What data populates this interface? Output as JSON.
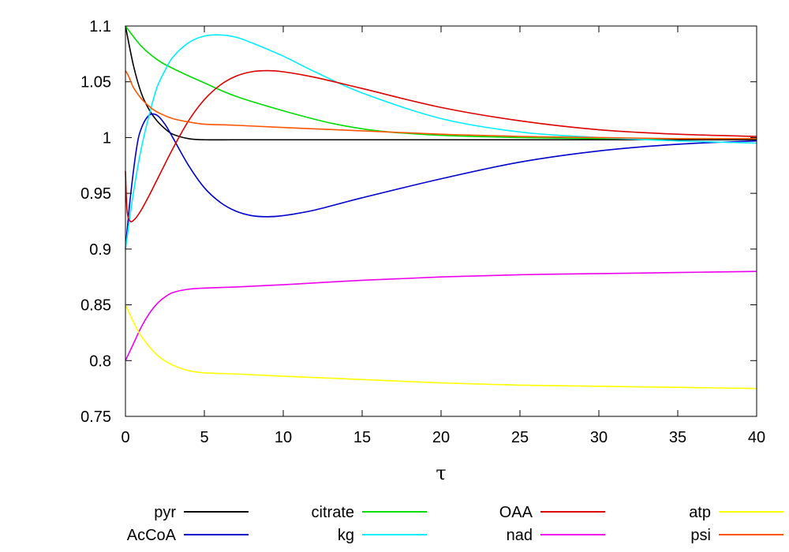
{
  "chart_data": {
    "type": "line",
    "title": "",
    "xlabel": "τ",
    "ylabel": "",
    "xlim": [
      0,
      40
    ],
    "ylim": [
      0.75,
      1.1
    ],
    "x_ticks": [
      0,
      5,
      10,
      15,
      20,
      25,
      30,
      35,
      40
    ],
    "x_tick_labels": [
      "0",
      "5",
      "10",
      "15",
      "20",
      "25",
      "30",
      "35",
      "40"
    ],
    "y_ticks": [
      0.75,
      0.8,
      0.85,
      0.9,
      0.95,
      1.0,
      1.05,
      1.1
    ],
    "y_tick_labels": [
      "0.75",
      "0.8",
      "0.85",
      "0.9",
      "0.95",
      "1",
      "1.05",
      "1.1"
    ],
    "grid": false,
    "legend_position": "bottom",
    "series": [
      {
        "name": "pyr",
        "color": "#000000",
        "x": [
          0,
          0.5,
          1,
          1.5,
          2,
          2.5,
          3,
          4,
          5,
          7,
          10,
          15,
          20,
          30,
          40
        ],
        "y": [
          1.1,
          1.065,
          1.04,
          1.025,
          1.015,
          1.008,
          1.003,
          0.999,
          0.998,
          0.998,
          0.998,
          0.998,
          0.998,
          0.998,
          0.998
        ]
      },
      {
        "name": "AcCoA",
        "color": "#0000cc",
        "x": [
          0,
          0.3,
          0.7,
          1,
          1.5,
          2,
          2.5,
          3,
          4,
          5,
          6,
          7,
          8,
          9,
          10,
          12,
          15,
          20,
          25,
          30,
          35,
          40
        ],
        "y": [
          0.9,
          0.945,
          0.99,
          1.008,
          1.02,
          1.02,
          1.012,
          1.0,
          0.975,
          0.955,
          0.942,
          0.934,
          0.93,
          0.929,
          0.93,
          0.935,
          0.946,
          0.963,
          0.978,
          0.988,
          0.994,
          0.997
        ]
      },
      {
        "name": "citrate",
        "color": "#00dd00",
        "x": [
          0,
          1,
          2,
          3,
          5,
          7,
          10,
          13,
          16,
          20,
          25,
          30,
          35,
          40
        ],
        "y": [
          1.1,
          1.082,
          1.07,
          1.062,
          1.049,
          1.037,
          1.024,
          1.013,
          1.006,
          1.002,
          1.0,
          0.999,
          0.999,
          0.999
        ]
      },
      {
        "name": "kg",
        "color": "#00eeff",
        "x": [
          0,
          0.5,
          1,
          1.5,
          2,
          2.5,
          3,
          4,
          5,
          6,
          7,
          8,
          10,
          12,
          15,
          20,
          25,
          30,
          35,
          40
        ],
        "y": [
          0.9,
          0.95,
          0.99,
          1.02,
          1.045,
          1.06,
          1.072,
          1.085,
          1.091,
          1.092,
          1.09,
          1.085,
          1.073,
          1.059,
          1.04,
          1.017,
          1.005,
          1.0,
          0.997,
          0.995
        ]
      },
      {
        "name": "OAA",
        "color": "#dd0000",
        "x": [
          0,
          0.1,
          0.3,
          0.6,
          1,
          1.5,
          2,
          3,
          4,
          5,
          6,
          7,
          8,
          9,
          10,
          12,
          15,
          20,
          25,
          30,
          35,
          40
        ],
        "y": [
          0.97,
          0.935,
          0.925,
          0.927,
          0.935,
          0.948,
          0.962,
          0.99,
          1.015,
          1.034,
          1.047,
          1.055,
          1.059,
          1.06,
          1.059,
          1.054,
          1.044,
          1.027,
          1.015,
          1.007,
          1.003,
          1.001
        ]
      },
      {
        "name": "nad",
        "color": "#ee00ee",
        "x": [
          0,
          0.5,
          1,
          1.5,
          2,
          2.5,
          3,
          4,
          5,
          7,
          10,
          15,
          20,
          25,
          30,
          35,
          40
        ],
        "y": [
          0.8,
          0.815,
          0.83,
          0.842,
          0.851,
          0.857,
          0.861,
          0.864,
          0.865,
          0.866,
          0.868,
          0.872,
          0.875,
          0.877,
          0.878,
          0.879,
          0.88
        ]
      },
      {
        "name": "atp",
        "color": "#ffff00",
        "x": [
          0,
          0.5,
          1,
          2,
          3,
          4,
          5,
          7,
          10,
          15,
          20,
          25,
          30,
          35,
          40
        ],
        "y": [
          0.85,
          0.835,
          0.822,
          0.805,
          0.796,
          0.791,
          0.789,
          0.788,
          0.786,
          0.783,
          0.78,
          0.778,
          0.777,
          0.776,
          0.775
        ]
      },
      {
        "name": "psi",
        "color": "#ff5500",
        "x": [
          0,
          0.2,
          0.5,
          1,
          1.5,
          2,
          3,
          4,
          5,
          7,
          10,
          15,
          20,
          25,
          30,
          35,
          40
        ],
        "y": [
          1.06,
          1.055,
          1.045,
          1.035,
          1.028,
          1.023,
          1.017,
          1.014,
          1.012,
          1.011,
          1.009,
          1.006,
          1.003,
          1.001,
          1.0,
          0.999,
          0.999
        ]
      }
    ]
  }
}
